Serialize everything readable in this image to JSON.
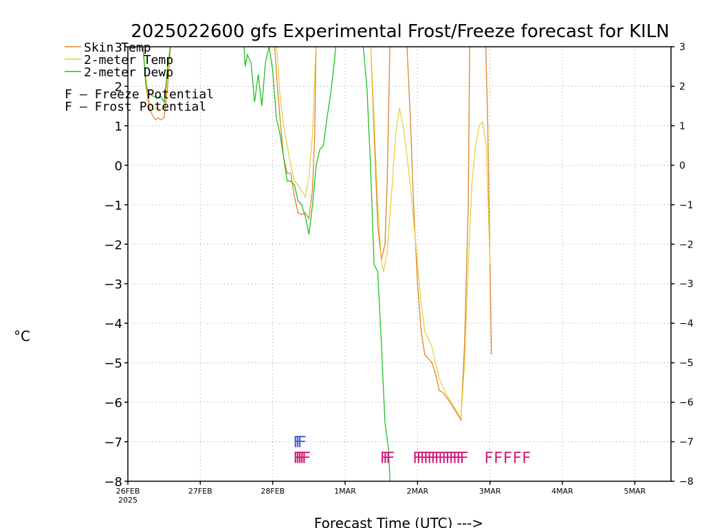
{
  "title": "2025022600 gfs Experimental Frost/Freeze forecast for KILN",
  "ylabel_left": "°C",
  "xlabel": "Forecast Time (UTC) --->",
  "legend": {
    "series": [
      {
        "label": "Skin Temp",
        "color": "#e0802a"
      },
      {
        "label": "2-meter Temp",
        "color": "#e6cf3a"
      },
      {
        "label": "2-meter Dewp",
        "color": "#1fbf1f"
      }
    ],
    "flags": [
      {
        "letter": "F",
        "label": "– Freeze Potential",
        "color": "#d0207a"
      },
      {
        "letter": "F",
        "label": "– Frost Potential",
        "color": "#4a5fd0"
      }
    ]
  },
  "chart_data": {
    "type": "line",
    "title": "2025022600 gfs Experimental Frost/Freeze forecast for KILN",
    "xlabel": "Forecast Time (UTC) --->",
    "ylabel": "°C",
    "ylim": [
      -8,
      3
    ],
    "xlim_days": [
      0,
      7.5
    ],
    "x_ticks": [
      {
        "day": 0,
        "label": "26FEB",
        "sub": "2025"
      },
      {
        "day": 1,
        "label": "27FEB"
      },
      {
        "day": 2,
        "label": "28FEB"
      },
      {
        "day": 3,
        "label": "1MAR"
      },
      {
        "day": 4,
        "label": "2MAR"
      },
      {
        "day": 5,
        "label": "3MAR"
      },
      {
        "day": 6,
        "label": "4MAR"
      },
      {
        "day": 7,
        "label": "5MAR"
      }
    ],
    "y_ticks": [
      3,
      2,
      1,
      0,
      -1,
      -2,
      -3,
      -4,
      -5,
      -6,
      -7,
      -8
    ],
    "grid": true,
    "series": [
      {
        "name": "Skin Temp",
        "color": "#e0802a",
        "points": [
          [
            0.2,
            3.2
          ],
          [
            0.25,
            2.0
          ],
          [
            0.3,
            1.4
          ],
          [
            0.38,
            1.15
          ],
          [
            0.42,
            1.2
          ],
          [
            0.45,
            1.15
          ],
          [
            0.5,
            1.2
          ],
          [
            0.55,
            2.0
          ],
          [
            0.6,
            3.2
          ],
          [
            2.02,
            3.2
          ],
          [
            2.06,
            2.1
          ],
          [
            2.1,
            1.2
          ],
          [
            2.15,
            0.2
          ],
          [
            2.2,
            -0.2
          ],
          [
            2.25,
            -0.2
          ],
          [
            2.3,
            -0.8
          ],
          [
            2.35,
            -1.2
          ],
          [
            2.4,
            -1.25
          ],
          [
            2.45,
            -1.2
          ],
          [
            2.5,
            -1.35
          ],
          [
            2.55,
            -0.6
          ],
          [
            2.58,
            0.8
          ],
          [
            2.6,
            3.2
          ],
          [
            3.35,
            3.2
          ],
          [
            3.4,
            0.8
          ],
          [
            3.45,
            -1.5
          ],
          [
            3.5,
            -2.4
          ],
          [
            3.55,
            -2.0
          ],
          [
            3.58,
            -0.5
          ],
          [
            3.62,
            3.2
          ],
          [
            3.85,
            3.2
          ],
          [
            3.9,
            1.2
          ],
          [
            3.95,
            -1.2
          ],
          [
            4.0,
            -3.0
          ],
          [
            4.05,
            -4.2
          ],
          [
            4.1,
            -4.8
          ],
          [
            4.2,
            -5.0
          ],
          [
            4.25,
            -5.3
          ],
          [
            4.3,
            -5.7
          ],
          [
            4.35,
            -5.75
          ],
          [
            4.45,
            -6.0
          ],
          [
            4.55,
            -6.3
          ],
          [
            4.6,
            -6.45
          ],
          [
            4.65,
            -4.5
          ],
          [
            4.7,
            -1.0
          ],
          [
            4.72,
            3.2
          ],
          [
            4.94,
            3.2
          ],
          [
            4.97,
            1.0
          ],
          [
            5.0,
            -2.5
          ],
          [
            5.02,
            -4.8
          ]
        ]
      },
      {
        "name": "2-meter Temp",
        "color": "#e6cf3a",
        "points": [
          [
            0.2,
            3.2
          ],
          [
            0.25,
            2.2
          ],
          [
            0.3,
            1.6
          ],
          [
            0.35,
            1.4
          ],
          [
            0.4,
            1.45
          ],
          [
            0.45,
            1.4
          ],
          [
            0.5,
            1.45
          ],
          [
            0.55,
            2.2
          ],
          [
            0.6,
            3.2
          ],
          [
            2.05,
            3.2
          ],
          [
            2.1,
            1.8
          ],
          [
            2.15,
            1.0
          ],
          [
            2.2,
            0.5
          ],
          [
            2.25,
            0.0
          ],
          [
            2.3,
            -0.4
          ],
          [
            2.35,
            -0.5
          ],
          [
            2.4,
            -0.65
          ],
          [
            2.45,
            -0.8
          ],
          [
            2.5,
            -0.3
          ],
          [
            2.55,
            0.8
          ],
          [
            2.6,
            3.2
          ],
          [
            3.35,
            3.2
          ],
          [
            3.4,
            1.2
          ],
          [
            3.45,
            -1.0
          ],
          [
            3.5,
            -2.4
          ],
          [
            3.53,
            -2.7
          ],
          [
            3.58,
            -2.2
          ],
          [
            3.65,
            -0.5
          ],
          [
            3.7,
            0.8
          ],
          [
            3.75,
            1.45
          ],
          [
            3.8,
            1.0
          ],
          [
            3.85,
            0.3
          ],
          [
            3.9,
            -0.5
          ],
          [
            3.95,
            -1.5
          ],
          [
            4.0,
            -2.5
          ],
          [
            4.05,
            -3.5
          ],
          [
            4.1,
            -4.2
          ],
          [
            4.2,
            -4.6
          ],
          [
            4.25,
            -5.0
          ],
          [
            4.3,
            -5.4
          ],
          [
            4.4,
            -5.8
          ],
          [
            4.5,
            -6.1
          ],
          [
            4.6,
            -6.4
          ],
          [
            4.65,
            -5.0
          ],
          [
            4.7,
            -2.5
          ],
          [
            4.75,
            -0.5
          ],
          [
            4.8,
            0.5
          ],
          [
            4.85,
            1.0
          ],
          [
            4.9,
            1.1
          ],
          [
            4.95,
            0.5
          ],
          [
            5.0,
            -2.5
          ]
        ]
      },
      {
        "name": "2-meter Dewp",
        "color": "#1fbf1f",
        "points": [
          [
            0.2,
            3.2
          ],
          [
            0.25,
            2.0
          ],
          [
            0.3,
            1.8
          ],
          [
            0.4,
            1.7
          ],
          [
            0.45,
            1.75
          ],
          [
            0.5,
            1.6
          ],
          [
            0.55,
            2.5
          ],
          [
            0.6,
            3.2
          ],
          [
            1.6,
            3.2
          ],
          [
            1.62,
            2.5
          ],
          [
            1.65,
            2.8
          ],
          [
            1.7,
            2.6
          ],
          [
            1.75,
            1.6
          ],
          [
            1.8,
            2.3
          ],
          [
            1.85,
            1.5
          ],
          [
            1.9,
            2.6
          ],
          [
            1.95,
            3.0
          ],
          [
            2.0,
            2.4
          ],
          [
            2.05,
            1.2
          ],
          [
            2.1,
            0.8
          ],
          [
            2.15,
            0.2
          ],
          [
            2.2,
            -0.4
          ],
          [
            2.25,
            -0.4
          ],
          [
            2.3,
            -0.5
          ],
          [
            2.35,
            -0.9
          ],
          [
            2.4,
            -1.0
          ],
          [
            2.45,
            -1.3
          ],
          [
            2.5,
            -1.75
          ],
          [
            2.55,
            -1.0
          ],
          [
            2.6,
            0.0
          ],
          [
            2.65,
            0.4
          ],
          [
            2.7,
            0.5
          ],
          [
            2.75,
            1.2
          ],
          [
            2.8,
            1.8
          ],
          [
            2.85,
            2.6
          ],
          [
            2.88,
            3.2
          ],
          [
            3.2,
            3.2
          ],
          [
            3.25,
            3.0
          ],
          [
            3.3,
            2.0
          ],
          [
            3.35,
            0.0
          ],
          [
            3.4,
            -2.5
          ],
          [
            3.45,
            -2.7
          ],
          [
            3.5,
            -4.5
          ],
          [
            3.55,
            -6.5
          ],
          [
            3.6,
            -7.2
          ],
          [
            3.62,
            -8.0
          ]
        ]
      }
    ],
    "flag_rows": [
      {
        "name": "Frost Potential",
        "color": "#4a5fd0",
        "y": -7.0,
        "days": [
          2.28,
          2.31,
          2.34
        ]
      },
      {
        "name": "Freeze Potential",
        "color": "#d0207a",
        "y": -7.4,
        "days": [
          2.28,
          2.31,
          2.34,
          2.37,
          2.4,
          3.48,
          3.52,
          3.56,
          3.93,
          3.98,
          4.03,
          4.08,
          4.13,
          4.18,
          4.23,
          4.28,
          4.33,
          4.38,
          4.43,
          4.48,
          4.53,
          4.58,
          4.92,
          5.05,
          5.18,
          5.31,
          5.44
        ]
      }
    ]
  }
}
